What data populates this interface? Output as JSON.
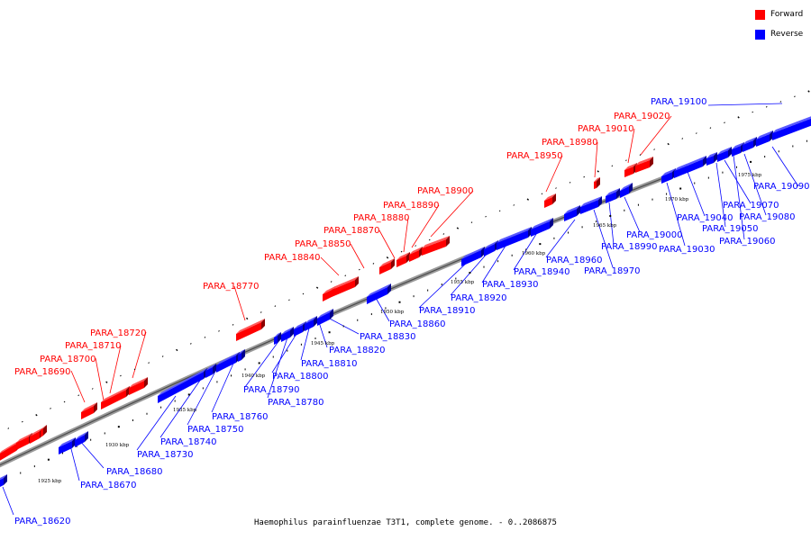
{
  "legend": {
    "forward": {
      "label": "Forward",
      "color": "#ff0000"
    },
    "reverse": {
      "label": "Reverse",
      "color": "#0000ff"
    }
  },
  "caption": "Haemophilus parainfluenzae T3T1, complete genome. - 0..2086875",
  "scale_labels": [
    "1925 kbp",
    "1930 kbp",
    "1935 kbp",
    "1940 kbp",
    "1945 kbp",
    "1950 kbp",
    "1955 kbp",
    "1960 kbp",
    "1965 kbp",
    "1970 kbp",
    "1975 kbp"
  ],
  "forward_genes": [
    "PARA_18690",
    "PARA_18700",
    "PARA_18710",
    "PARA_18720",
    "PARA_18770",
    "PARA_18840",
    "PARA_18850",
    "PARA_18870",
    "PARA_18880",
    "PARA_18890",
    "PARA_18900",
    "PARA_18950",
    "PARA_18980",
    "PARA_19010",
    "PARA_19020"
  ],
  "reverse_genes": [
    "PARA_18620",
    "PARA_18670",
    "PARA_18680",
    "PARA_18730",
    "PARA_18740",
    "PARA_18750",
    "PARA_18760",
    "PARA_18780",
    "PARA_18790",
    "PARA_18800",
    "PARA_18810",
    "PARA_18820",
    "PARA_18830",
    "PARA_18860",
    "PARA_18910",
    "PARA_18920",
    "PARA_18930",
    "PARA_18940",
    "PARA_18960",
    "PARA_18970",
    "PARA_18990",
    "PARA_19000",
    "PARA_19030",
    "PARA_19040",
    "PARA_19050",
    "PARA_19060",
    "PARA_19070",
    "PARA_19080",
    "PARA_19090",
    "PARA_19100"
  ]
}
